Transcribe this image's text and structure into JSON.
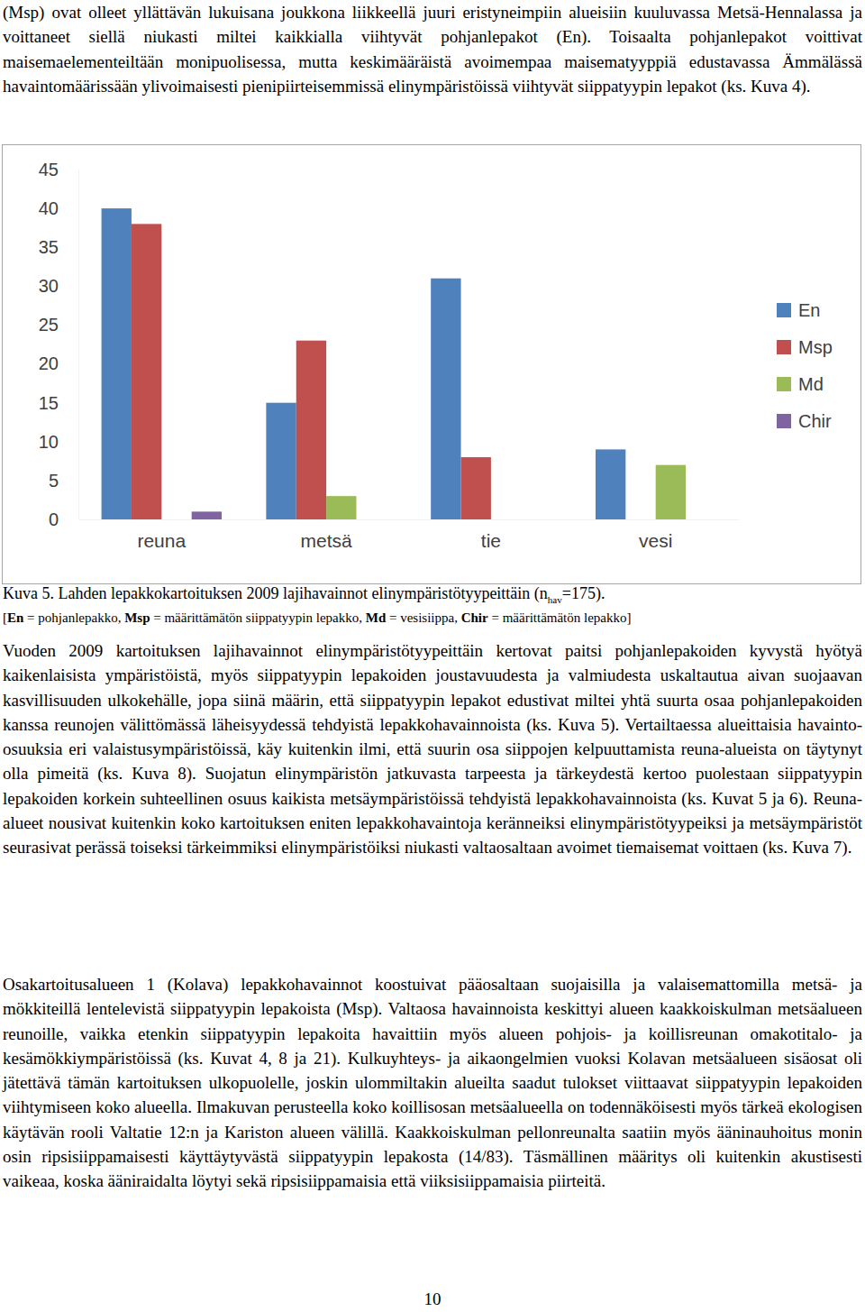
{
  "document": {
    "paragraphs": [
      "(Msp) ovat olleet yllättävän lukuisana joukkona liikkeellä juuri eristyneimpiin alueisiin kuuluvassa Metsä-Hennalassa ja voittaneet siellä niukasti miltei kaikkialla viihtyvät pohjanlepakot (En). Toisaalta pohjanlepakot voittivat maisemaelementeiltään monipuolisessa, mutta keskimääräistä avoimempaa maisematyyppiä edustavassa Ämmälässä havaintomäärissään ylivoimaisesti pienipiirteisemmissä elinympäristöissä viihtyvät siippatyypin lepakot (ks. Kuva 4).",
      "Vuoden 2009 kartoituksen lajihavainnot elinympäristötyypeittäin kertovat paitsi pohjanlepakoiden kyvystä hyötyä kaikenlaisista ympäristöistä, myös siippatyypin lepakoiden joustavuudesta ja valmiudesta uskaltautua aivan suojaavan kasvillisuuden ulkokehälle, jopa siinä määrin, että siippatyypin lepakot edustivat miltei yhtä suurta osaa pohjanlepakoiden kanssa reunojen välittömässä läheisyydessä tehdyistä lepakkohavainnoista (ks. Kuva 5). Vertailtaessa alueittaisia havainto-osuuksia eri valaistusympäristöissä, käy kuitenkin ilmi, että suurin osa siippojen kelpuuttamista reuna-alueista on täytynyt olla pimeitä (ks. Kuva 8). Suojatun elinympäristön jatkuvasta tarpeesta ja tärkeydestä kertoo puolestaan siippatyypin lepakoiden korkein suhteellinen osuus kaikista metsäympäristöissä tehdyistä lepakkohavainnoista (ks. Kuvat 5 ja 6). Reuna-alueet nousivat kuitenkin koko kartoituksen eniten lepakkohavaintoja keränneiksi elinympäristötyypeiksi ja metsäympäristöt seurasivat perässä toiseksi tärkeimmiksi elinympäristöiksi niukasti valtaosaltaan avoimet tiemaisemat voittaen (ks. Kuva 7).",
      "Osakartoitusalueen 1 (Kolava) lepakkohavainnot koostuivat pääosaltaan suojaisilla ja valaisemattomilla metsä- ja mökkiteillä lentelevistä siippatyypin lepakoista (Msp). Valtaosa havainnoista keskittyi alueen kaakkoiskulman metsäalueen reunoille, vaikka etenkin siippatyypin lepakoita havaittiin myös alueen pohjois- ja koillisreunan omakotitalo- ja kesämökkiympäristöissä (ks. Kuvat 4, 8 ja 21). Kulkuyhteys- ja aikaongelmien vuoksi Kolavan metsäalueen sisäosat oli jätettävä tämän kartoituksen ulkopuolelle, joskin ulommiltakin alueilta saadut tulokset viittaavat siippatyypin lepakoiden viihtymiseen koko alueella. Ilmakuvan perusteella koko koillisosan metsäalueella on todennäköisesti myös tärkeä ekologisen käytävän rooli Valtatie 12:n ja Kariston alueen välillä. Kaakkoiskulman pellonreunalta saatiin myös ääninauhoitus monin osin ripsisiippamaisesti käyttäytyvästä siippatyypin lepakosta (14/83). Täsmällinen määritys oli kuitenkin akustisesti vaikeaa, koska ääniraidalta löytyi sekä ripsisiippamaisia että viiksisiippamaisia piirteitä."
    ],
    "caption": {
      "text_before": "Kuva 5. Lahden lepakkokartoituksen 2009 lajihavainnot elinympäristötyypeittäin (n",
      "subscript": "hav",
      "text_after": "=175)."
    },
    "legend_note": [
      {
        "text": "[",
        "bold": false
      },
      {
        "text": "En",
        "bold": true
      },
      {
        "text": " = pohjanlepakko, ",
        "bold": false
      },
      {
        "text": "Msp",
        "bold": true
      },
      {
        "text": " = määrittämätön siippatyypin lepakko, ",
        "bold": false
      },
      {
        "text": "Md",
        "bold": true
      },
      {
        "text": " = vesisiippa, ",
        "bold": false
      },
      {
        "text": "Chir",
        "bold": true
      },
      {
        "text": " = määrittämätön lepakko]",
        "bold": false
      }
    ],
    "page_number": 10
  },
  "chart_data": {
    "type": "bar",
    "categories": [
      "reuna",
      "metsä",
      "tie",
      "vesi"
    ],
    "series": [
      {
        "name": "En",
        "color": "#4f81bd",
        "values": [
          40,
          15,
          31,
          9
        ]
      },
      {
        "name": "Msp",
        "color": "#c0504d",
        "values": [
          38,
          23,
          8,
          0
        ]
      },
      {
        "name": "Md",
        "color": "#9bbb59",
        "values": [
          0,
          3,
          0,
          7
        ]
      },
      {
        "name": "Chir",
        "color": "#8064a2",
        "values": [
          1,
          0,
          0,
          0
        ]
      }
    ],
    "ylim": [
      0,
      45
    ],
    "yticks": [
      0,
      5,
      10,
      15,
      20,
      25,
      30,
      35,
      40,
      45
    ],
    "grid": false,
    "legend": "right"
  }
}
